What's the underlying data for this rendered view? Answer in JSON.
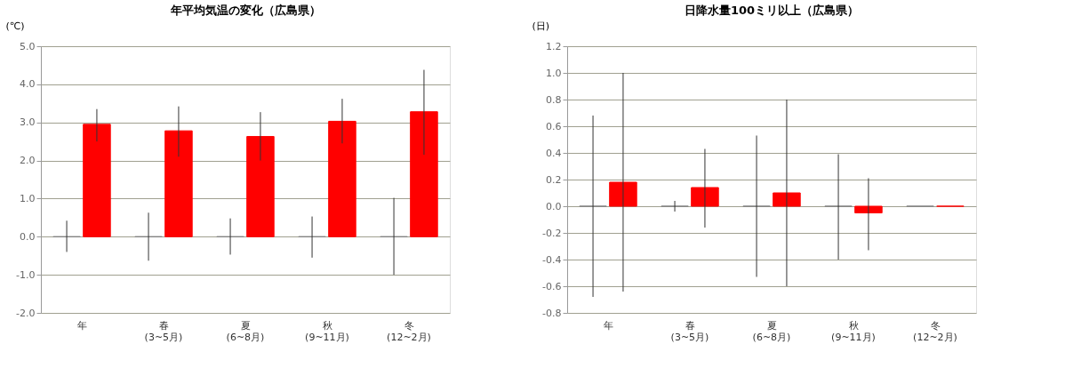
{
  "chart_data": [
    {
      "type": "bar",
      "title": "年平均気温の変化（広島県）",
      "ylabel": "(℃)",
      "categories": [
        "年",
        "春\n(3~5月)",
        "夏\n(6~8月)",
        "秋\n(9~11月)",
        "冬\n(12~2月)"
      ],
      "series": [
        {
          "color": "#808080",
          "values": [
            0,
            0,
            0,
            0,
            0
          ],
          "errors": [
            [
              -0.4,
              0.42
            ],
            [
              -0.63,
              0.63
            ],
            [
              -0.47,
              0.48
            ],
            [
              -0.55,
              0.53
            ],
            [
              -1.0,
              1.02
            ]
          ]
        },
        {
          "color": "#ff0000",
          "values": [
            2.95,
            2.78,
            2.63,
            3.03,
            3.28
          ],
          "errors": [
            [
              2.5,
              3.35
            ],
            [
              2.1,
              3.42
            ],
            [
              2.0,
              3.27
            ],
            [
              2.45,
              3.62
            ],
            [
              2.15,
              4.38
            ]
          ]
        }
      ],
      "ylim": [
        -2,
        5
      ],
      "yticks": [
        {
          "value": -2,
          "label": "-2.0"
        },
        {
          "value": -1,
          "label": "-1.0"
        },
        {
          "value": 0,
          "label": "0.0"
        },
        {
          "value": 1,
          "label": "1.0"
        },
        {
          "value": 2,
          "label": "2.0"
        },
        {
          "value": 3,
          "label": "3.0"
        },
        {
          "value": 4,
          "label": "4.0"
        },
        {
          "value": 5,
          "label": "5.0"
        }
      ],
      "grid": "y",
      "legend": false
    },
    {
      "type": "bar",
      "title": "日降水量100ミリ以上（広島県）",
      "ylabel": "(日)",
      "categories": [
        "年",
        "春\n(3~5月)",
        "夏\n(6~8月)",
        "秋\n(9~11月)",
        "冬\n(12~2月)"
      ],
      "series": [
        {
          "color": "#808080",
          "values": [
            0,
            0,
            0,
            0,
            0
          ],
          "errors": [
            [
              -0.68,
              0.68
            ],
            [
              -0.04,
              0.04
            ],
            [
              -0.53,
              0.53
            ],
            [
              -0.4,
              0.39
            ],
            null
          ]
        },
        {
          "color": "#ff0000",
          "values": [
            0.18,
            0.14,
            0.1,
            -0.05,
            0
          ],
          "errors": [
            [
              -0.64,
              1.0
            ],
            [
              -0.16,
              0.43
            ],
            [
              -0.6,
              0.8
            ],
            [
              -0.33,
              0.21
            ],
            null
          ]
        }
      ],
      "ylim": [
        -0.8,
        1.2
      ],
      "yticks": [
        {
          "value": -0.8,
          "label": "-0.8"
        },
        {
          "value": -0.6,
          "label": "-0.6"
        },
        {
          "value": -0.4,
          "label": "-0.4"
        },
        {
          "value": -0.2,
          "label": "-0.2"
        },
        {
          "value": 0,
          "label": "0.0"
        },
        {
          "value": 0.2,
          "label": "0.2"
        },
        {
          "value": 0.4,
          "label": "0.4"
        },
        {
          "value": 0.6,
          "label": "0.6"
        },
        {
          "value": 0.8,
          "label": "0.8"
        },
        {
          "value": 1.0,
          "label": "1.0"
        },
        {
          "value": 1.2,
          "label": "1.2"
        }
      ],
      "grid": "y",
      "legend": false
    }
  ]
}
